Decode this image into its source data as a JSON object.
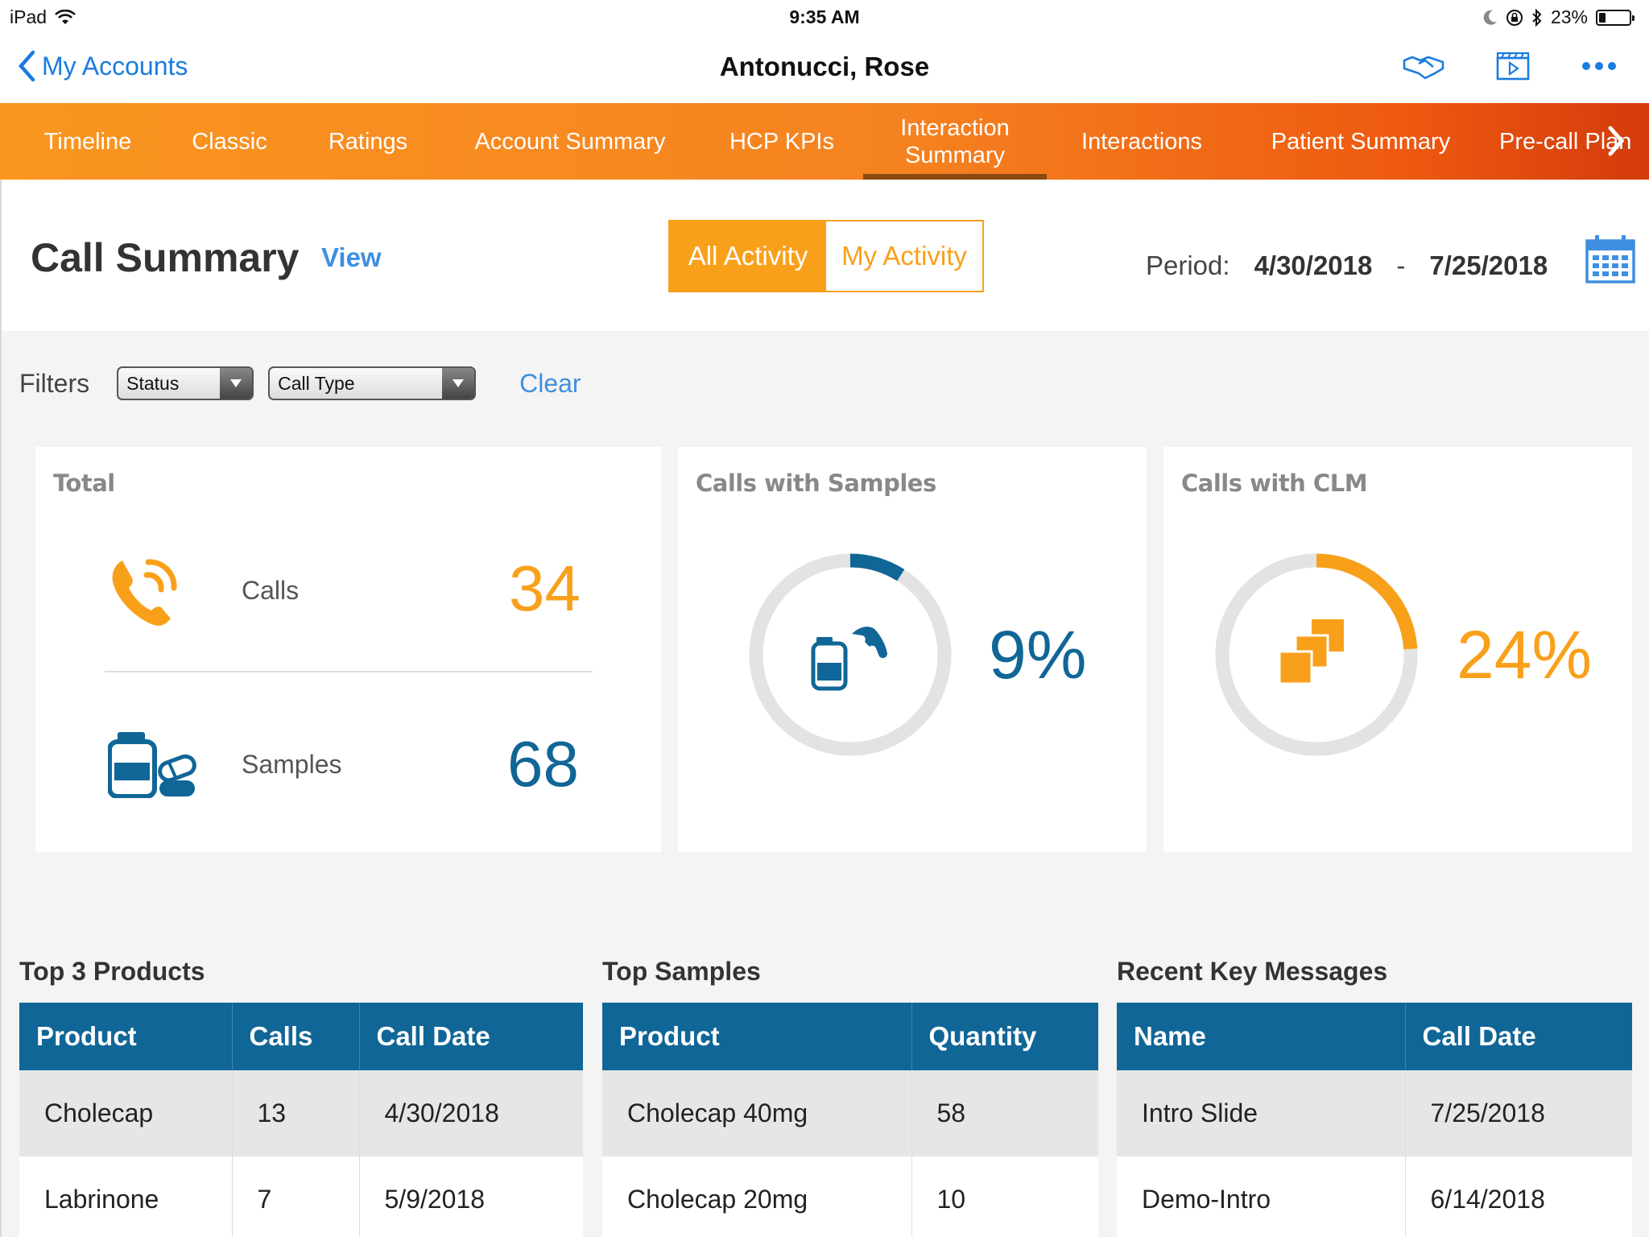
{
  "status_bar": {
    "device": "iPad",
    "time": "9:35 AM",
    "battery": "23%",
    "battery_level": 0.23
  },
  "nav": {
    "back_label": "My Accounts",
    "title": "Antonucci, Rose"
  },
  "tabs": [
    {
      "label": "Timeline"
    },
    {
      "label": "Classic"
    },
    {
      "label": "Ratings"
    },
    {
      "label": "Account Summary"
    },
    {
      "label": "HCP KPIs"
    },
    {
      "label": "Interaction\nSummary",
      "active": true
    },
    {
      "label": "Interactions"
    },
    {
      "label": "Patient Summary"
    },
    {
      "label": "Pre-call Plan"
    }
  ],
  "header": {
    "title": "Call Summary",
    "view_link": "View",
    "toggle": {
      "all": "All Activity",
      "mine": "My Activity",
      "selected": "all"
    },
    "period_label": "Period:",
    "period_start": "4/30/2018",
    "period_separator": "-",
    "period_end": "7/25/2018"
  },
  "filters": {
    "label": "Filters",
    "status": "Status",
    "call_type": "Call Type",
    "clear": "Clear"
  },
  "cards": {
    "total": {
      "title": "Total",
      "calls_label": "Calls",
      "calls_value": "34",
      "samples_label": "Samples",
      "samples_value": "68"
    },
    "samples": {
      "title": "Calls with Samples",
      "percent": "9%",
      "fraction": 0.09
    },
    "clm": {
      "title": "Calls with CLM",
      "percent": "24%",
      "fraction": 0.24
    }
  },
  "colors": {
    "orange": "#f9a01b",
    "blue": "#106696",
    "link": "#3f8fe0",
    "ring": "#e3e3e3"
  },
  "top_products": {
    "title": "Top 3 Products",
    "headers": [
      "Product",
      "Calls",
      "Call Date"
    ],
    "rows": [
      [
        "Cholecap",
        "13",
        "4/30/2018"
      ],
      [
        "Labrinone",
        "7",
        "5/9/2018"
      ]
    ]
  },
  "top_samples": {
    "title": "Top Samples",
    "headers": [
      "Product",
      "Quantity"
    ],
    "rows": [
      [
        "Cholecap 40mg",
        "58"
      ],
      [
        "Cholecap 20mg",
        "10"
      ]
    ]
  },
  "key_messages": {
    "title": "Recent Key Messages",
    "headers": [
      "Name",
      "Call Date"
    ],
    "rows": [
      [
        "Intro Slide",
        "7/25/2018"
      ],
      [
        "Demo-Intro",
        "6/14/2018"
      ]
    ]
  }
}
